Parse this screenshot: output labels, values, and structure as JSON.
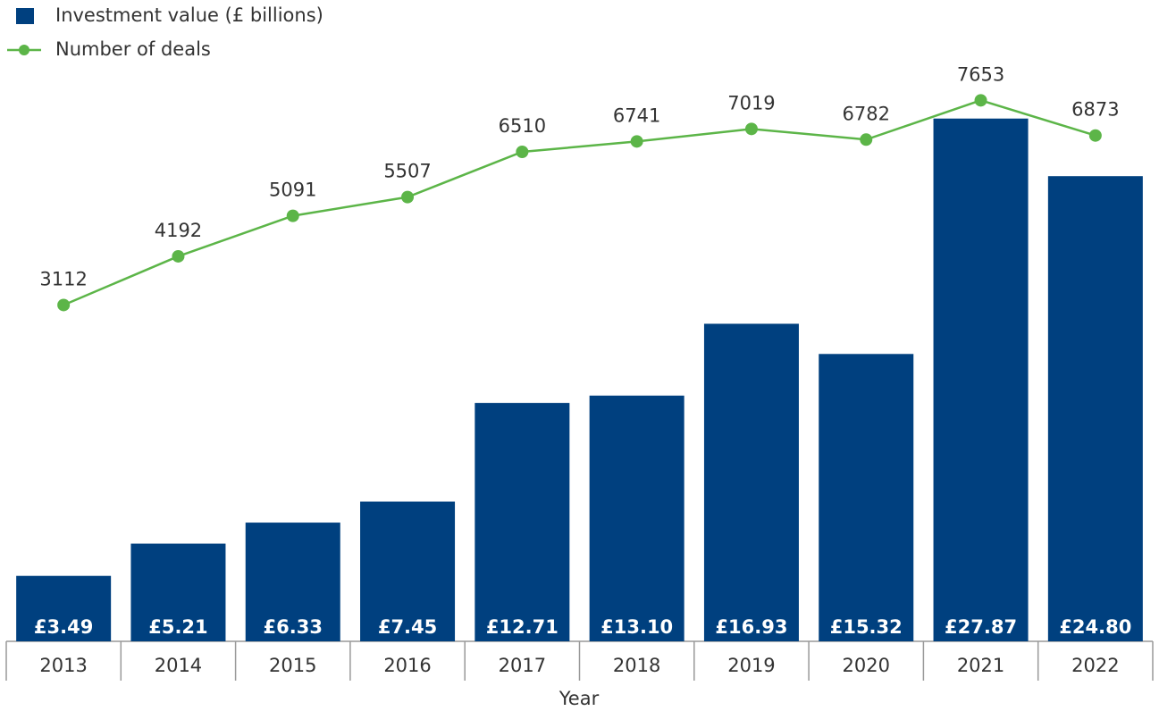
{
  "chart_data": {
    "type": "bar_line",
    "xlabel": "Year",
    "categories": [
      "2013",
      "2014",
      "2015",
      "2016",
      "2017",
      "2018",
      "2019",
      "2020",
      "2021",
      "2022"
    ],
    "series": [
      {
        "name": "Investment value (£ billions)",
        "type": "bar",
        "color": "#00407f",
        "values": [
          3.49,
          5.21,
          6.33,
          7.45,
          12.71,
          13.1,
          16.93,
          15.32,
          27.87,
          24.8
        ],
        "value_labels": [
          "£3.49",
          "£5.21",
          "£6.33",
          "£7.45",
          "£12.71",
          "£13.10",
          "£16.93",
          "£15.32",
          "£27.87",
          "£24.80"
        ]
      },
      {
        "name": "Number of deals",
        "type": "line",
        "axis": "y2",
        "color": "#5cb548",
        "values": [
          3112,
          4192,
          5091,
          5507,
          6510,
          6741,
          7019,
          6782,
          7653,
          6873
        ]
      }
    ],
    "ylim": [
      0,
      34
    ],
    "y2lim": [
      -4350,
      9800
    ],
    "legend": "top-left"
  }
}
